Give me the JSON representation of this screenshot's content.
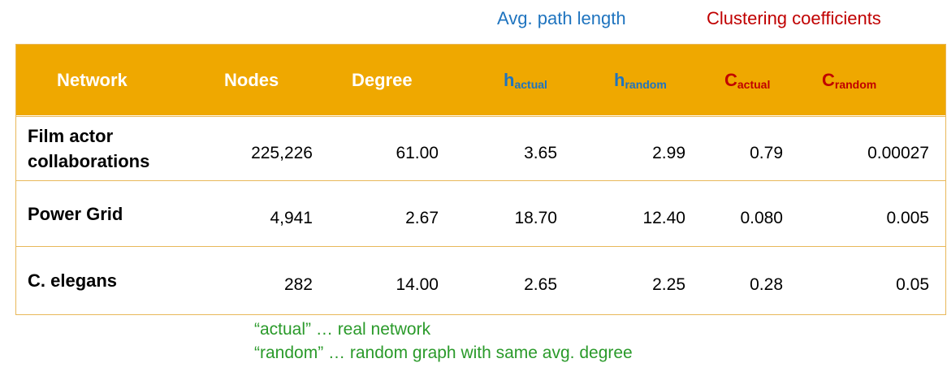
{
  "captions": {
    "path_length": "Avg. path length",
    "clustering": "Clustering coefficients"
  },
  "colors": {
    "header_bg": "#efa800",
    "header_text": "#ffffff",
    "path_blue": "#1f74bf",
    "clustering_red": "#c00000",
    "note_green": "#2a9a2a"
  },
  "table": {
    "headers": {
      "network": "Network",
      "nodes": "Nodes",
      "degree": "Degree",
      "h_actual": {
        "main": "h",
        "sub": "actual"
      },
      "h_random": {
        "main": "h",
        "sub": "random"
      },
      "c_actual": {
        "main": "C",
        "sub": "actual"
      },
      "c_random": {
        "main": "C",
        "sub": "random"
      }
    },
    "rows": [
      {
        "network_line1": "Film actor",
        "network_line2": "collaborations",
        "nodes": "225,226",
        "degree": "61.00",
        "h_actual": "3.65",
        "h_random": "2.99",
        "c_actual": "0.79",
        "c_random": "0.00027"
      },
      {
        "network": "Power Grid",
        "nodes": "4,941",
        "degree": "2.67",
        "h_actual": "18.70",
        "h_random": "12.40",
        "c_actual": "0.080",
        "c_random": "0.005"
      },
      {
        "network": "C. elegans",
        "nodes": "282",
        "degree": "14.00",
        "h_actual": "2.65",
        "h_random": "2.25",
        "c_actual": "0.28",
        "c_random": "0.05"
      }
    ]
  },
  "notes": [
    "“actual” … real network",
    "“random” … random graph with same avg. degree"
  ]
}
